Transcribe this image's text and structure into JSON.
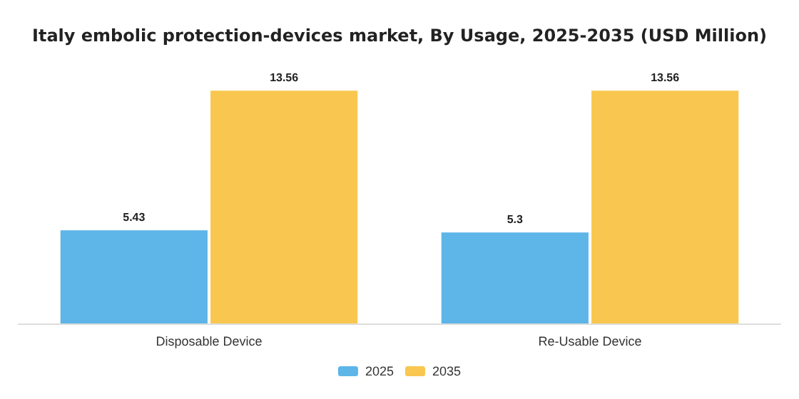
{
  "chart_data": {
    "type": "bar",
    "title": "Italy embolic protection-devices market, By Usage, 2025-2035 (USD Million)",
    "categories": [
      "Disposable Device",
      "Re-Usable Device"
    ],
    "series": [
      {
        "name": "2025",
        "color": "#5db5e8",
        "values": [
          5.43,
          5.3
        ]
      },
      {
        "name": "2035",
        "color": "#f9c74f",
        "values": [
          13.56,
          13.56
        ]
      }
    ],
    "data_labels": true,
    "legend": "bottom",
    "grid": false
  }
}
